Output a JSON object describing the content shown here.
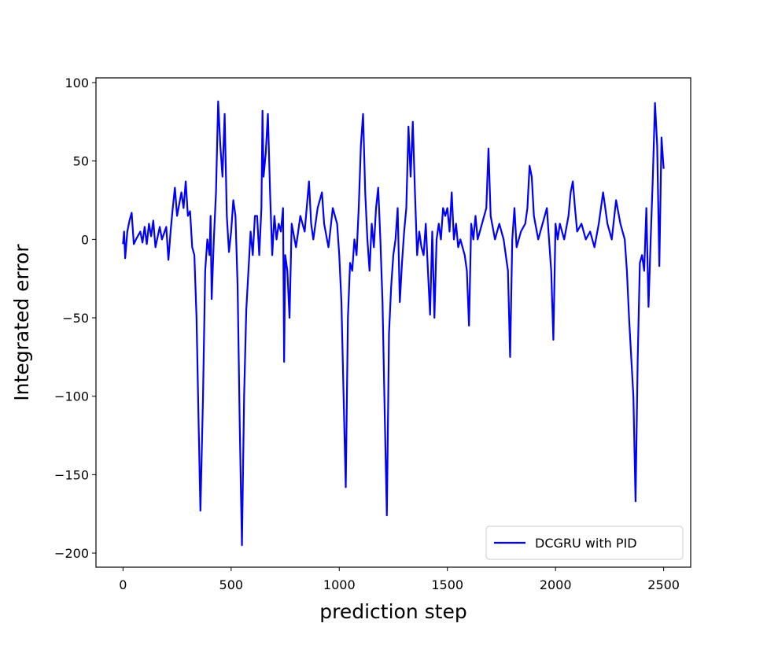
{
  "chart_data": {
    "type": "line",
    "x_label": "prediction step",
    "y_label": "Integrated error",
    "x": [
      0,
      5,
      10,
      20,
      30,
      40,
      50,
      60,
      80,
      90,
      100,
      110,
      120,
      130,
      140,
      150,
      170,
      180,
      200,
      210,
      220,
      230,
      240,
      250,
      270,
      280,
      290,
      300,
      310,
      320,
      330,
      340,
      350,
      358,
      370,
      380,
      390,
      400,
      405,
      410,
      420,
      430,
      440,
      450,
      460,
      470,
      480,
      490,
      500,
      510,
      520,
      530,
      540,
      550,
      560,
      570,
      580,
      590,
      600,
      610,
      620,
      630,
      640,
      645,
      650,
      660,
      670,
      680,
      690,
      700,
      710,
      720,
      730,
      740,
      745,
      750,
      760,
      770,
      780,
      800,
      820,
      840,
      860,
      870,
      880,
      900,
      920,
      930,
      950,
      970,
      990,
      1000,
      1010,
      1020,
      1030,
      1040,
      1050,
      1060,
      1070,
      1080,
      1090,
      1100,
      1110,
      1120,
      1130,
      1140,
      1150,
      1160,
      1170,
      1180,
      1190,
      1200,
      1210,
      1220,
      1230,
      1240,
      1250,
      1260,
      1270,
      1280,
      1290,
      1300,
      1310,
      1320,
      1330,
      1340,
      1350,
      1360,
      1370,
      1380,
      1390,
      1400,
      1410,
      1420,
      1430,
      1440,
      1450,
      1460,
      1470,
      1480,
      1490,
      1500,
      1510,
      1520,
      1530,
      1540,
      1550,
      1560,
      1580,
      1590,
      1600,
      1610,
      1620,
      1630,
      1640,
      1660,
      1680,
      1690,
      1700,
      1720,
      1740,
      1760,
      1780,
      1790,
      1800,
      1810,
      1820,
      1840,
      1860,
      1870,
      1880,
      1890,
      1900,
      1920,
      1940,
      1960,
      1970,
      1980,
      1990,
      2000,
      2010,
      2020,
      2040,
      2060,
      2070,
      2080,
      2090,
      2100,
      2120,
      2140,
      2160,
      2180,
      2200,
      2220,
      2240,
      2260,
      2280,
      2300,
      2320,
      2330,
      2340,
      2360,
      2370,
      2380,
      2390,
      2400,
      2410,
      2420,
      2430,
      2440,
      2450,
      2460,
      2470,
      2480,
      2490,
      2500
    ],
    "series": [
      {
        "name": "DCGRU with PID",
        "color": "#0000ff",
        "values": [
          -3,
          5,
          -12,
          5,
          12,
          17,
          -3,
          0,
          5,
          -2,
          8,
          -3,
          10,
          2,
          12,
          -5,
          8,
          0,
          8,
          -13,
          5,
          20,
          33,
          15,
          30,
          20,
          37,
          15,
          18,
          -5,
          -10,
          -50,
          -120,
          -173,
          -100,
          -20,
          0,
          -10,
          15,
          -38,
          0,
          30,
          88,
          60,
          40,
          80,
          15,
          -8,
          5,
          25,
          15,
          -30,
          -120,
          -195,
          -100,
          -45,
          -20,
          5,
          -10,
          15,
          15,
          -10,
          20,
          82,
          40,
          55,
          80,
          30,
          -10,
          15,
          0,
          10,
          5,
          20,
          -78,
          -10,
          -20,
          -50,
          10,
          -5,
          15,
          5,
          37,
          10,
          0,
          20,
          30,
          10,
          -5,
          20,
          10,
          -10,
          -40,
          -100,
          -158,
          -50,
          -15,
          -20,
          0,
          -10,
          20,
          60,
          80,
          30,
          0,
          -20,
          10,
          -5,
          20,
          33,
          0,
          -40,
          -110,
          -176,
          -60,
          -30,
          -10,
          0,
          20,
          -40,
          -15,
          5,
          20,
          72,
          40,
          75,
          30,
          -10,
          5,
          -5,
          -10,
          10,
          -20,
          -48,
          5,
          -50,
          0,
          10,
          0,
          20,
          15,
          20,
          5,
          30,
          0,
          10,
          -5,
          0,
          -10,
          -20,
          -55,
          10,
          0,
          15,
          0,
          10,
          20,
          58,
          15,
          0,
          10,
          0,
          -20,
          -75,
          0,
          20,
          -5,
          5,
          10,
          20,
          47,
          40,
          15,
          0,
          10,
          20,
          0,
          -20,
          -64,
          10,
          0,
          10,
          0,
          15,
          30,
          37,
          20,
          5,
          10,
          0,
          5,
          -5,
          10,
          30,
          10,
          0,
          25,
          10,
          0,
          -20,
          -50,
          -100,
          -167,
          -76,
          -15,
          -10,
          -20,
          20,
          -43,
          0,
          40,
          87,
          60,
          -17,
          65,
          45
        ]
      }
    ],
    "xlim": [
      -125,
      2625
    ],
    "ylim": [
      -209,
      103
    ],
    "xticks": [
      0,
      500,
      1000,
      1500,
      2000,
      2500
    ],
    "yticks": [
      {
        "value": -200,
        "label": "−200"
      },
      {
        "value": -150,
        "label": "−150"
      },
      {
        "value": -100,
        "label": "−100"
      },
      {
        "value": -50,
        "label": "−50"
      },
      0,
      50,
      100
    ],
    "legend_position": "lower right"
  }
}
